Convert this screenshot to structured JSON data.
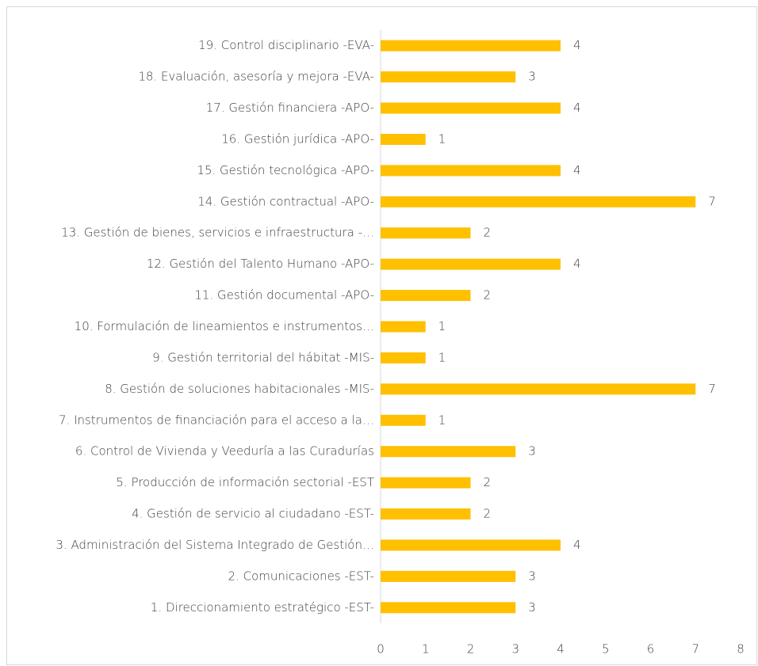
{
  "chart_data": {
    "type": "bar",
    "orientation": "horizontal",
    "categories": [
      "1. Direccionamiento estratégico -EST-",
      "2. Comunicaciones -EST-",
      "3. Administración del Sistema Integrado de Gestión…",
      "4. Gestión de servicio al ciudadano -EST-",
      "5. Producción de información sectorial -EST",
      "6. Control de Vivienda y Veeduría a las Curadurías",
      "7. Instrumentos de financiación para el acceso a la…",
      "8. Gestión de soluciones habitacionales -MIS-",
      "9. Gestión territorial del hábitat -MIS-",
      "10. Formulación de lineamientos e instrumentos…",
      "11. Gestión documental -APO-",
      "12. Gestión del Talento Humano  -APO-",
      "13. Gestión de bienes, servicios e infraestructura -…",
      "14. Gestión contractual -APO-",
      "15. Gestión tecnológica -APO-",
      "16. Gestión jurídica -APO-",
      "17. Gestión financiera -APO-",
      "18. Evaluación, asesoría y mejora -EVA-",
      "19. Control disciplinario  -EVA-"
    ],
    "values": [
      3,
      3,
      4,
      2,
      2,
      3,
      1,
      7,
      1,
      1,
      2,
      4,
      2,
      7,
      4,
      1,
      4,
      3,
      4
    ],
    "color": "#ffc000",
    "xlim": [
      0,
      8
    ],
    "xticks": [
      0,
      1,
      2,
      3,
      4,
      5,
      6,
      7,
      8
    ],
    "grid": false
  }
}
